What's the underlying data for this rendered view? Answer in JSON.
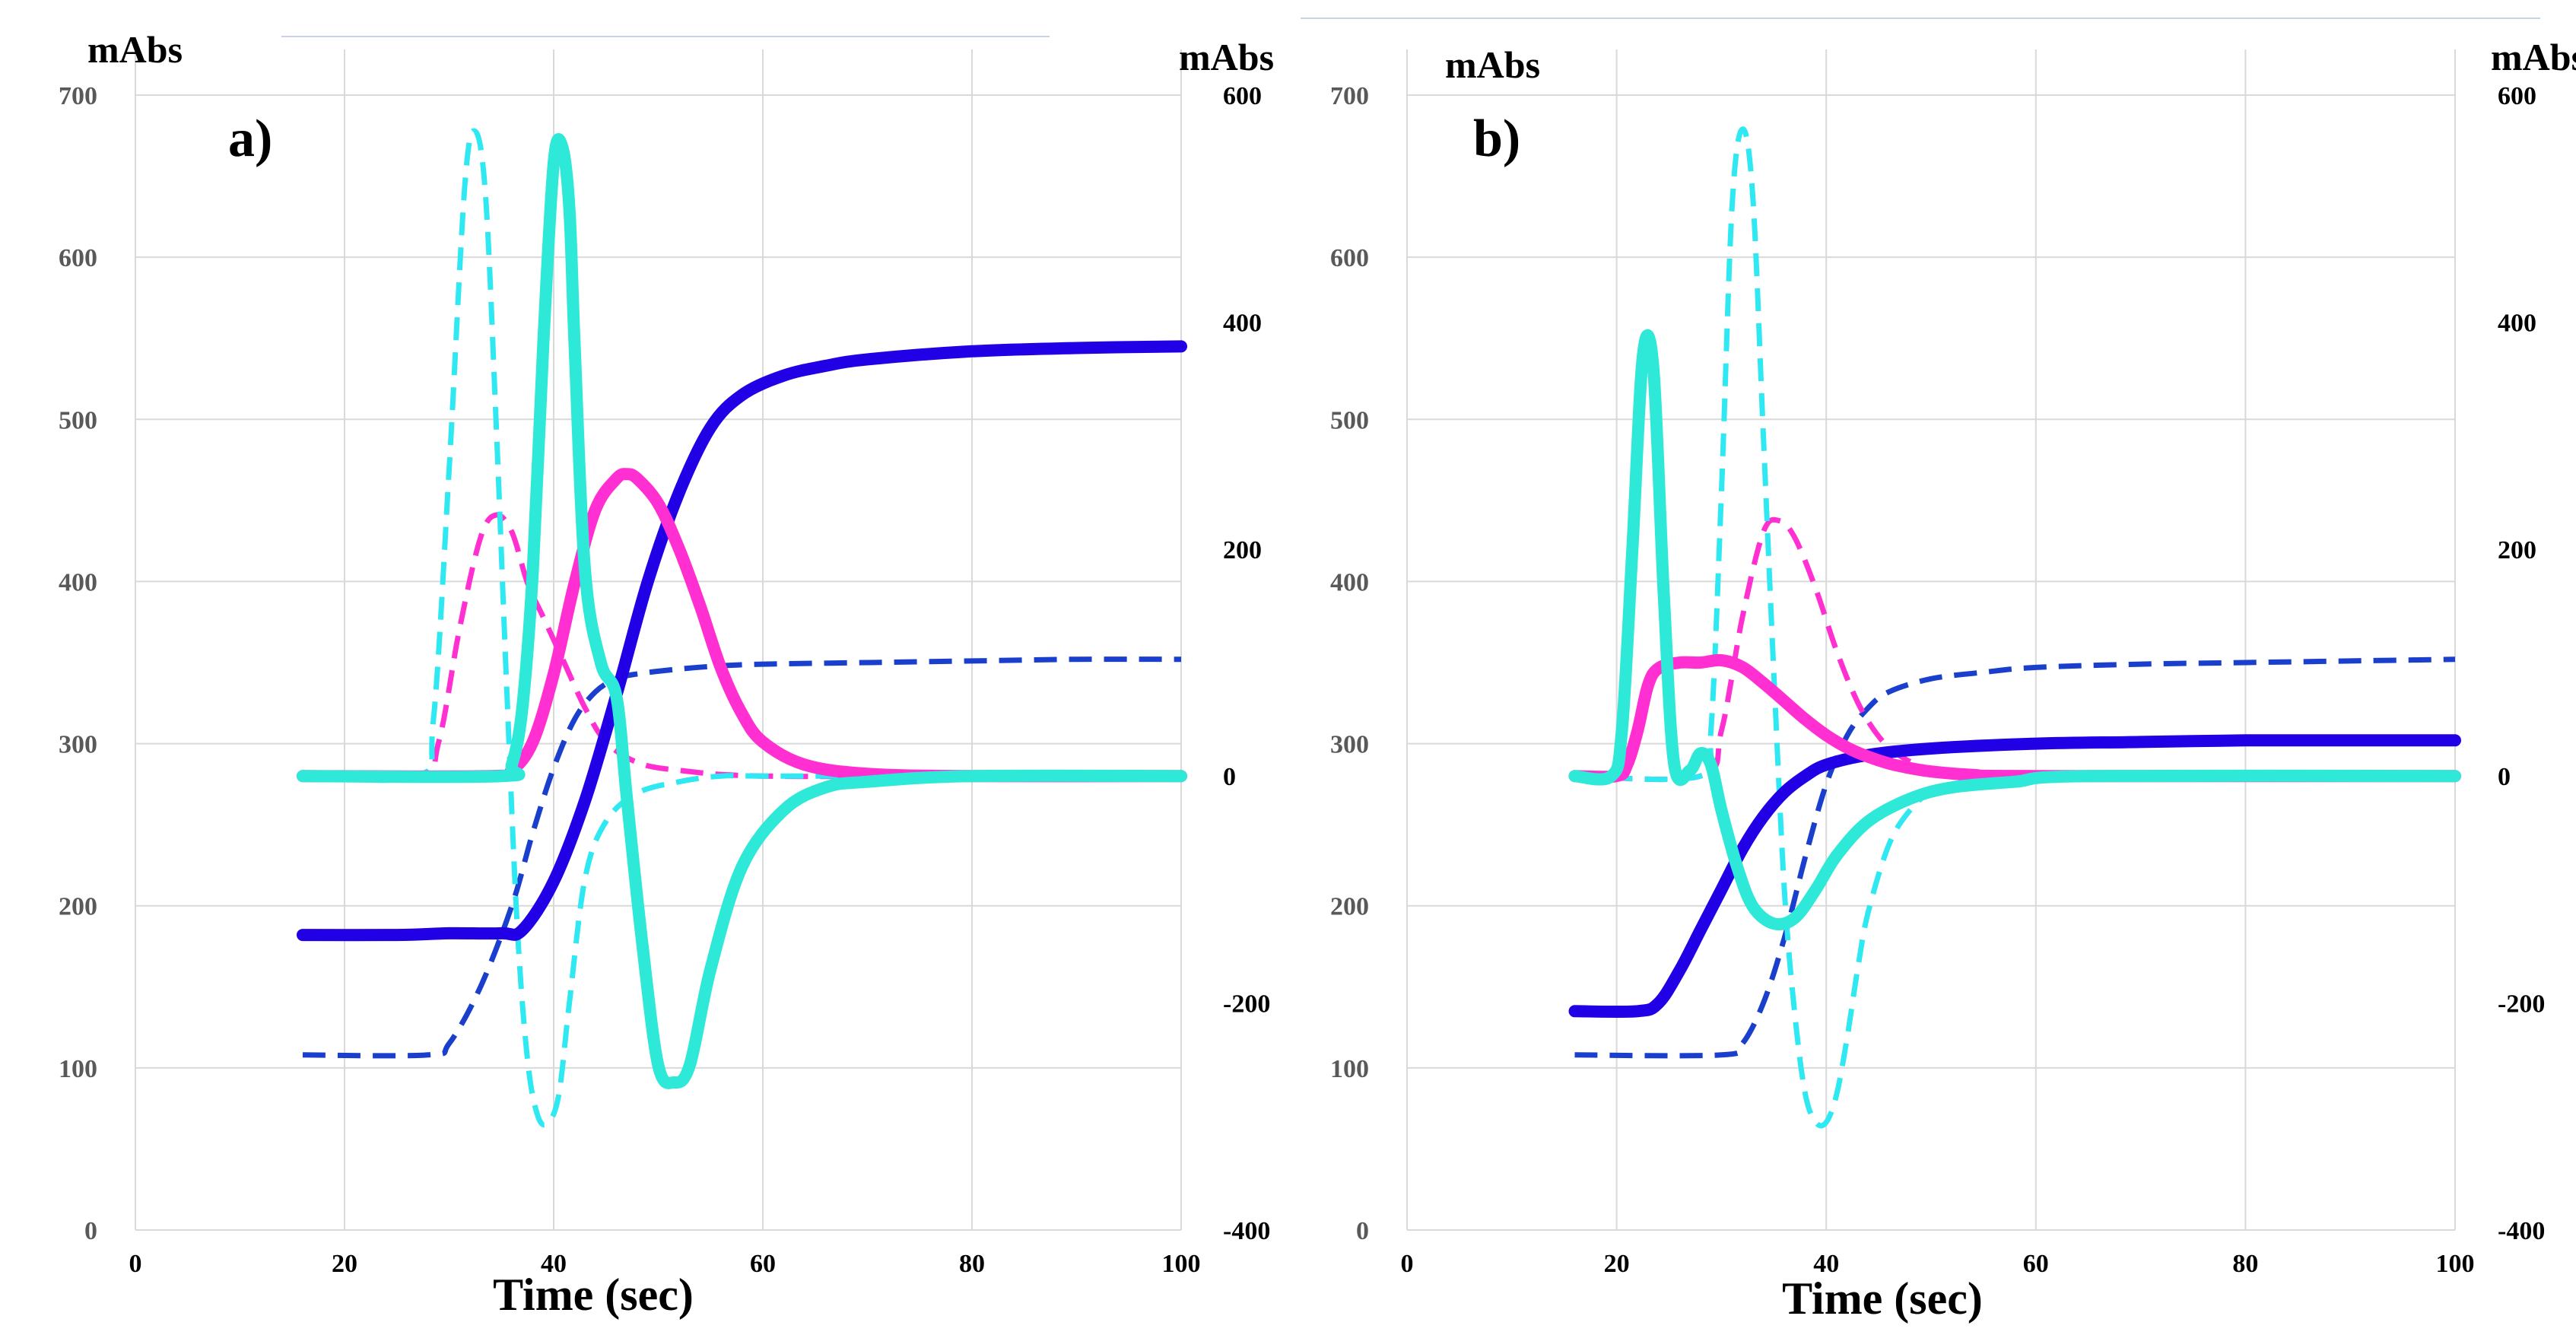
{
  "chart_data": [
    {
      "type": "line",
      "panel_label": "a)",
      "xlabel": "Time (sec)",
      "y_left_label": "mAbs",
      "y_right_label": "mAbs",
      "xlim": [
        0,
        100
      ],
      "x_ticks": [
        0,
        20,
        40,
        60,
        80,
        100
      ],
      "ylim_left": [
        0,
        700
      ],
      "y_left_ticks": [
        0,
        100,
        200,
        300,
        400,
        500,
        600,
        700
      ],
      "ylim_right": [
        -400,
        600
      ],
      "y_right_ticks": [
        -400,
        -200,
        0,
        200,
        400,
        600
      ],
      "grid": true,
      "series": [
        {
          "name": "blue-solid",
          "axis": "left",
          "color": "#2200e6",
          "style": "solid",
          "x": [
            16,
            25,
            30,
            35,
            37,
            40,
            43,
            46,
            49,
            52,
            55,
            58,
            62,
            66,
            70,
            80,
            90,
            100
          ],
          "y": [
            182,
            182,
            183,
            183,
            185,
            215,
            265,
            330,
            400,
            455,
            495,
            515,
            527,
            533,
            537,
            542,
            544,
            545
          ]
        },
        {
          "name": "blue-dashed",
          "axis": "left",
          "color": "#1a3fcc",
          "style": "dashed",
          "x": [
            16,
            28,
            30,
            33,
            36,
            38,
            40,
            42,
            44,
            46,
            48,
            52,
            56,
            60,
            70,
            80,
            90,
            100
          ],
          "y": [
            108,
            108,
            115,
            150,
            200,
            245,
            285,
            315,
            332,
            340,
            343,
            346,
            348,
            349,
            350,
            351,
            352,
            352
          ]
        },
        {
          "name": "magenta-solid",
          "axis": "right",
          "color": "#ff2fd2",
          "style": "solid",
          "x": [
            16,
            34,
            36,
            38,
            40,
            42,
            44,
            46,
            47,
            48,
            50,
            52,
            54,
            56,
            58,
            60,
            64,
            70,
            80,
            100
          ],
          "y": [
            0,
            0,
            5,
            30,
            90,
            170,
            235,
            262,
            266,
            262,
            240,
            200,
            150,
            95,
            55,
            30,
            10,
            2,
            0,
            0
          ]
        },
        {
          "name": "magenta-dashed",
          "axis": "right",
          "color": "#ff2fd2",
          "style": "dashed",
          "x": [
            16,
            27,
            29,
            31,
            33,
            34.5,
            36,
            37.5,
            39,
            41,
            43,
            45,
            48,
            52,
            60,
            80,
            100
          ],
          "y": [
            0,
            0,
            30,
            130,
            210,
            230,
            215,
            170,
            140,
            100,
            60,
            30,
            12,
            5,
            0,
            0,
            0
          ]
        },
        {
          "name": "cyan-solid",
          "axis": "right",
          "color": "#2ee8d8",
          "style": "solid",
          "x": [
            16,
            35,
            36,
            37,
            38,
            39,
            40,
            40.8,
            41.5,
            42,
            43,
            44.5,
            46,
            47,
            48.5,
            50,
            51.5,
            53,
            55,
            58,
            62,
            66,
            70,
            80,
            100
          ],
          "y": [
            0,
            0,
            10,
            60,
            180,
            380,
            540,
            555,
            500,
            380,
            180,
            100,
            70,
            -20,
            -150,
            -255,
            -270,
            -255,
            -170,
            -80,
            -30,
            -10,
            -5,
            0,
            0
          ]
        },
        {
          "name": "cyan-dashed",
          "axis": "right",
          "color": "#2ee8f2",
          "style": "dashed",
          "x": [
            16,
            27,
            28.5,
            30,
            31.5,
            32.5,
            33.5,
            34.5,
            35.5,
            36.5,
            37.5,
            38.5,
            39.5,
            40.5,
            41.5,
            43,
            45,
            48,
            52,
            56,
            60,
            70,
            100
          ],
          "y": [
            0,
            0,
            50,
            270,
            520,
            568,
            510,
            310,
            80,
            -130,
            -250,
            -300,
            -305,
            -280,
            -200,
            -90,
            -40,
            -15,
            -5,
            0,
            0,
            0,
            0
          ]
        }
      ]
    },
    {
      "type": "line",
      "panel_label": "b)",
      "xlabel": "Time (sec)",
      "y_left_label": "mAbs",
      "y_right_label": "mAbs",
      "xlim": [
        0,
        100
      ],
      "x_ticks": [
        0,
        20,
        40,
        60,
        80,
        100
      ],
      "ylim_left": [
        0,
        700
      ],
      "y_left_ticks": [
        0,
        100,
        200,
        300,
        400,
        500,
        600,
        700
      ],
      "ylim_right": [
        -400,
        600
      ],
      "y_right_ticks": [
        -400,
        -200,
        0,
        200,
        400,
        600
      ],
      "grid": true,
      "series": [
        {
          "name": "blue-solid",
          "axis": "left",
          "color": "#2200e6",
          "style": "solid",
          "x": [
            16,
            22,
            24,
            26,
            28,
            30,
            32,
            34,
            36,
            38,
            40,
            44,
            50,
            60,
            70,
            80,
            90,
            100
          ],
          "y": [
            135,
            135,
            140,
            160,
            185,
            210,
            235,
            255,
            270,
            280,
            287,
            293,
            297,
            300,
            301,
            302,
            302,
            302
          ]
        },
        {
          "name": "blue-dashed",
          "axis": "left",
          "color": "#1a3fcc",
          "style": "dashed",
          "x": [
            16,
            30,
            32,
            34,
            36,
            38,
            40,
            42,
            44,
            46,
            50,
            55,
            60,
            70,
            80,
            90,
            100
          ],
          "y": [
            108,
            108,
            115,
            140,
            180,
            230,
            275,
            305,
            322,
            332,
            340,
            344,
            347,
            349,
            350,
            351,
            352
          ]
        },
        {
          "name": "magenta-solid",
          "axis": "right",
          "color": "#ff2fd2",
          "style": "solid",
          "x": [
            16,
            20,
            21,
            22,
            23,
            24,
            26,
            28,
            30,
            32,
            34,
            36,
            38,
            40,
            42,
            44,
            46,
            48,
            50,
            54,
            60,
            100
          ],
          "y": [
            0,
            0,
            10,
            40,
            80,
            95,
            100,
            100,
            102,
            96,
            82,
            66,
            50,
            36,
            25,
            17,
            11,
            7,
            4,
            1,
            0,
            0
          ]
        },
        {
          "name": "magenta-dashed",
          "axis": "right",
          "color": "#ff2fd2",
          "style": "dashed",
          "x": [
            16,
            28,
            30,
            32,
            34,
            35.5,
            37,
            39,
            41,
            43,
            45,
            47,
            50,
            55,
            60,
            100
          ],
          "y": [
            0,
            0,
            40,
            140,
            215,
            225,
            210,
            165,
            110,
            65,
            35,
            18,
            6,
            1,
            0,
            0
          ]
        },
        {
          "name": "cyan-solid",
          "axis": "right",
          "color": "#2ee8d8",
          "style": "solid",
          "x": [
            16,
            19.5,
            20.5,
            21.5,
            22.5,
            23.5,
            24.5,
            25.5,
            27,
            28,
            29,
            30,
            31.5,
            33,
            35,
            37,
            39,
            41,
            44,
            48,
            52,
            58,
            65,
            100
          ],
          "y": [
            0,
            0,
            40,
            200,
            370,
            360,
            160,
            10,
            5,
            20,
            10,
            -30,
            -80,
            -115,
            -130,
            -125,
            -100,
            -70,
            -40,
            -20,
            -10,
            -5,
            0,
            0
          ]
        },
        {
          "name": "cyan-dashed",
          "axis": "right",
          "color": "#2ee8f2",
          "style": "dashed",
          "x": [
            16,
            28,
            29,
            30,
            31,
            32,
            33,
            34,
            35,
            36,
            37,
            38,
            39,
            40,
            41,
            42,
            43,
            44,
            46,
            48,
            50,
            54,
            60,
            100
          ],
          "y": [
            0,
            0,
            40,
            250,
            500,
            570,
            510,
            300,
            90,
            -100,
            -210,
            -280,
            -305,
            -305,
            -280,
            -230,
            -170,
            -120,
            -60,
            -30,
            -15,
            -5,
            0,
            0
          ]
        }
      ]
    }
  ]
}
